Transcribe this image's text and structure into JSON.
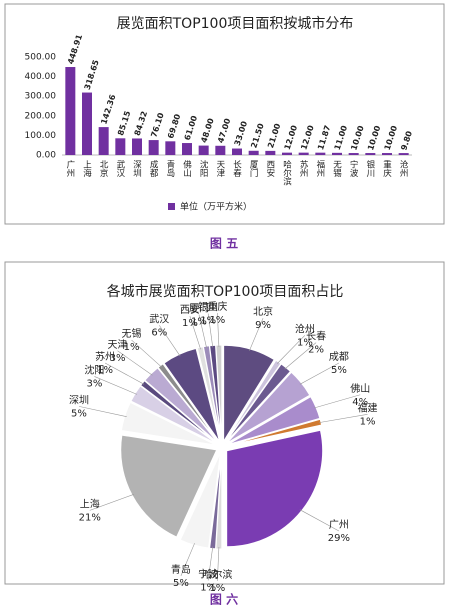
{
  "chart_data": [
    {
      "type": "bar",
      "title": "展览面积TOP100项目面积按城市分布",
      "categories": [
        "广州",
        "上海",
        "北京",
        "武汉",
        "深圳",
        "成都",
        "青岛",
        "佛山",
        "沈阳",
        "天津",
        "长春",
        "厦门",
        "西安",
        "哈尔滨",
        "苏州",
        "福州",
        "无锡",
        "宁波",
        "银川",
        "重庆",
        "沧州"
      ],
      "series": [
        {
          "name": "单位（万平方米）",
          "color": "#7030a0",
          "values": [
            448.91,
            318.65,
            142.36,
            85.15,
            84.32,
            76.1,
            69.8,
            61.0,
            48.0,
            47.0,
            33.0,
            21.5,
            21.0,
            12.0,
            12.0,
            11.87,
            11.0,
            10.0,
            10.0,
            10.0,
            9.8
          ],
          "value_labels": [
            "448.91",
            "318.65",
            "142.36",
            "85.15",
            "84.32",
            "76.10",
            "69.80",
            "61.00",
            "48.00",
            "47.00",
            "33.00",
            "21.50",
            "21.00",
            "12.00",
            "12.00",
            "11.87",
            "11.00",
            "10.00",
            "10.00",
            "10.00",
            "9.80"
          ]
        }
      ],
      "ylim": [
        0,
        500
      ],
      "yticks": [
        {
          "value": 0,
          "label": "0.00"
        },
        {
          "value": 100,
          "label": "100.00"
        },
        {
          "value": 200,
          "label": "200.00"
        },
        {
          "value": 300,
          "label": "300.00"
        },
        {
          "value": 400,
          "label": "400.00"
        },
        {
          "value": 500,
          "label": "500.00"
        }
      ],
      "legend": "bottom",
      "caption": "图 五"
    },
    {
      "type": "pie",
      "title": "各城市展览面积TOP100项目面积占比",
      "categories": [
        "北京",
        "沧州",
        "长春",
        "成都",
        "佛山",
        "福建",
        "广州",
        "哈尔滨",
        "宁波",
        "青岛",
        "上海",
        "深圳",
        "沈阳",
        "苏州",
        "天津",
        "无锡",
        "武汉",
        "西安",
        "厦门",
        "银川",
        "重庆"
      ],
      "values": [
        9,
        1,
        2,
        5,
        4,
        1,
        29,
        1,
        1,
        5,
        21,
        5,
        3,
        1,
        3,
        1,
        6,
        1,
        1,
        1,
        1
      ],
      "value_labels": [
        "9%",
        "1%",
        "2%",
        "5%",
        "4%",
        "1%",
        "29%",
        "1%",
        "1%",
        "5%",
        "21%",
        "5%",
        "3%",
        "1%",
        "3%",
        "1%",
        "6%",
        "1%",
        "1%",
        "1%",
        "1%"
      ],
      "colors": [
        "#5e4c80",
        "#cdc4dd",
        "#6c5a90",
        "#b6a2d2",
        "#a98ccc",
        "#d07a30",
        "#7a3cb2",
        "#dcdcdc",
        "#7a6a9a",
        "#f4f4f4",
        "#b3b3b3",
        "#f4f4f4",
        "#d8d0e6",
        "#5a4a7e",
        "#baaad2",
        "#8c8c8c",
        "#5c4a82",
        "#e0e0e0",
        "#9c8cba",
        "#5c4a82",
        "#cfcfcf"
      ],
      "caption": "图 六"
    }
  ]
}
